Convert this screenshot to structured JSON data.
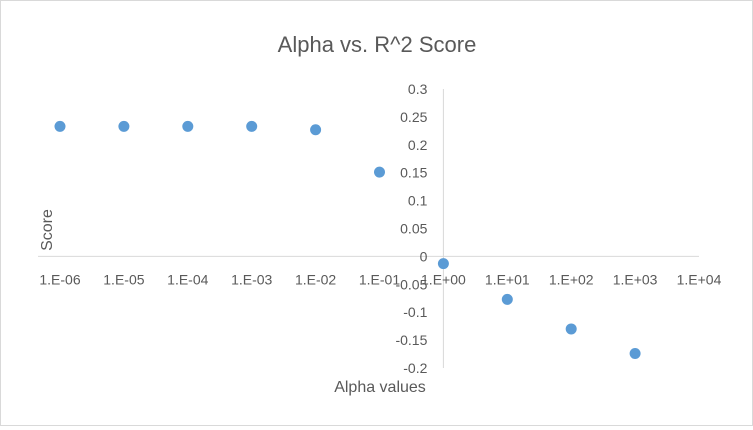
{
  "chart_data": {
    "type": "scatter",
    "title": "Alpha vs. R^2 Score",
    "xlabel": "Alpha values",
    "ylabel": "Score",
    "x_scale": "log",
    "x_ticks": [
      {
        "value": 1e-06,
        "label": "1.E-06"
      },
      {
        "value": 1e-05,
        "label": "1.E-05"
      },
      {
        "value": 0.0001,
        "label": "1.E-04"
      },
      {
        "value": 0.001,
        "label": "1.E-03"
      },
      {
        "value": 0.01,
        "label": "1.E-02"
      },
      {
        "value": 0.1,
        "label": "1.E-01"
      },
      {
        "value": 1.0,
        "label": "1.E+00"
      },
      {
        "value": 10.0,
        "label": "1.E+01"
      },
      {
        "value": 100.0,
        "label": "1.E+02"
      },
      {
        "value": 1000.0,
        "label": "1.E+03"
      },
      {
        "value": 10000.0,
        "label": "1.E+04"
      }
    ],
    "y_ticks": [
      "0.3",
      "0.25",
      "0.2",
      "0.15",
      "0.1",
      "0.05",
      "0",
      "-0.05",
      "-0.1",
      "-0.15",
      "-0.2"
    ],
    "xlim": [
      1e-06,
      10000.0
    ],
    "ylim": [
      -0.2,
      0.3
    ],
    "grid": false,
    "legend": "none",
    "marker_color": "#5b9bd5",
    "points": [
      {
        "x": 1e-06,
        "y": 0.233
      },
      {
        "x": 1e-05,
        "y": 0.233
      },
      {
        "x": 0.0001,
        "y": 0.233
      },
      {
        "x": 0.001,
        "y": 0.233
      },
      {
        "x": 0.01,
        "y": 0.227
      },
      {
        "x": 0.1,
        "y": 0.151
      },
      {
        "x": 1.0,
        "y": -0.013
      },
      {
        "x": 10.0,
        "y": -0.077
      },
      {
        "x": 100.0,
        "y": -0.13
      },
      {
        "x": 1000.0,
        "y": -0.174
      }
    ]
  }
}
